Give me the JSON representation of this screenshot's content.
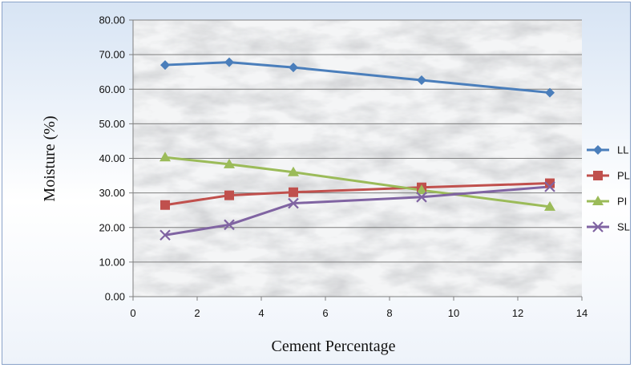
{
  "chart_data": {
    "type": "line",
    "title": "",
    "xlabel": "Cement Percentage",
    "ylabel": "Moisture (%)",
    "xlim": [
      0,
      14
    ],
    "ylim": [
      0,
      80
    ],
    "x_ticks": [
      "0",
      "2",
      "4",
      "6",
      "8",
      "10",
      "12",
      "14"
    ],
    "y_ticks": [
      "0.00",
      "10.00",
      "20.00",
      "30.00",
      "40.00",
      "50.00",
      "60.00",
      "70.00",
      "80.00"
    ],
    "grid": "horizontal",
    "legend_position": "right",
    "series": [
      {
        "name": "LL",
        "color": "#4a7ebb",
        "marker": "diamond",
        "x": [
          1,
          3,
          5,
          9,
          13
        ],
        "y": [
          67.0,
          67.8,
          66.3,
          62.6,
          59.0
        ]
      },
      {
        "name": "PL",
        "color": "#c0504d",
        "marker": "square",
        "x": [
          1,
          3,
          5,
          9,
          13
        ],
        "y": [
          26.5,
          29.3,
          30.2,
          31.6,
          32.8
        ]
      },
      {
        "name": "PI",
        "color": "#9bbb59",
        "marker": "triangle",
        "x": [
          1,
          3,
          5,
          9,
          13
        ],
        "y": [
          40.3,
          38.3,
          36.0,
          30.8,
          26.0
        ]
      },
      {
        "name": "SL",
        "color": "#8064a2",
        "marker": "x",
        "x": [
          1,
          3,
          5,
          9,
          13
        ],
        "y": [
          17.8,
          20.8,
          27.0,
          28.8,
          31.8
        ]
      }
    ]
  }
}
